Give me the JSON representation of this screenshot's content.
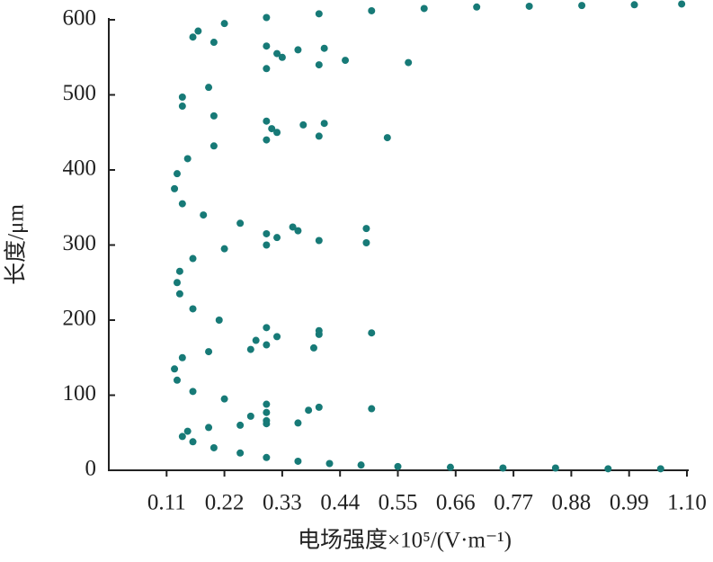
{
  "chart_data": {
    "type": "scatter",
    "xlabel": "电场强度×10⁵/(V·m⁻¹)",
    "ylabel": "长度/μm",
    "color": "#177a77",
    "xlim": [
      0,
      1.1
    ],
    "ylim": [
      0,
      600
    ],
    "xticks": [
      0.11,
      0.22,
      0.33,
      0.44,
      0.55,
      0.66,
      0.77,
      0.88,
      0.99,
      {
        "value": 1.1,
        "label": "1.10"
      }
    ],
    "yticks": [
      0,
      100,
      200,
      300,
      400,
      500,
      600
    ],
    "x": [
      1.05,
      0.95,
      0.85,
      0.75,
      0.65,
      0.55,
      0.48,
      0.42,
      0.36,
      0.3,
      0.25,
      0.2,
      0.16,
      0.14,
      0.15,
      0.19,
      0.25,
      0.3,
      0.36,
      0.3,
      0.27,
      0.3,
      0.38,
      0.5,
      0.4,
      0.3,
      0.22,
      0.16,
      0.13,
      0.125,
      0.14,
      0.19,
      0.27,
      0.39,
      0.3,
      0.28,
      0.32,
      0.4,
      0.5,
      0.4,
      0.3,
      0.21,
      0.16,
      0.135,
      0.13,
      0.135,
      0.16,
      0.22,
      0.3,
      0.49,
      0.4,
      0.32,
      0.3,
      0.36,
      0.49,
      0.35,
      0.25,
      0.18,
      0.14,
      0.125,
      0.13,
      0.15,
      0.2,
      0.3,
      0.53,
      0.4,
      0.32,
      0.31,
      0.37,
      0.41,
      0.3,
      0.2,
      0.14,
      0.14,
      0.19,
      0.3,
      0.4,
      0.57,
      0.45,
      0.33,
      0.32,
      0.36,
      0.41,
      0.3,
      0.2,
      0.16,
      0.17,
      0.22,
      0.3,
      0.4,
      0.5,
      0.6,
      0.7,
      0.8,
      0.9,
      1.0,
      1.09
    ],
    "values": [
      2,
      2,
      3,
      3,
      4,
      5,
      7,
      9,
      12,
      17,
      23,
      30,
      38,
      45,
      52,
      57,
      60,
      62,
      63,
      66,
      72,
      77,
      80,
      82,
      84,
      88,
      95,
      105,
      120,
      135,
      150,
      158,
      161,
      163,
      167,
      173,
      178,
      181,
      183,
      186,
      190,
      200,
      215,
      235,
      250,
      265,
      282,
      295,
      300,
      303,
      306,
      310,
      315,
      319,
      322,
      324,
      329,
      340,
      355,
      375,
      395,
      415,
      432,
      440,
      443,
      445,
      450,
      455,
      460,
      462,
      465,
      472,
      485,
      497,
      510,
      535,
      540,
      543,
      546,
      550,
      555,
      560,
      562,
      565,
      570,
      577,
      585,
      595,
      603,
      608,
      612,
      615,
      617,
      618,
      619,
      620,
      621
    ]
  }
}
